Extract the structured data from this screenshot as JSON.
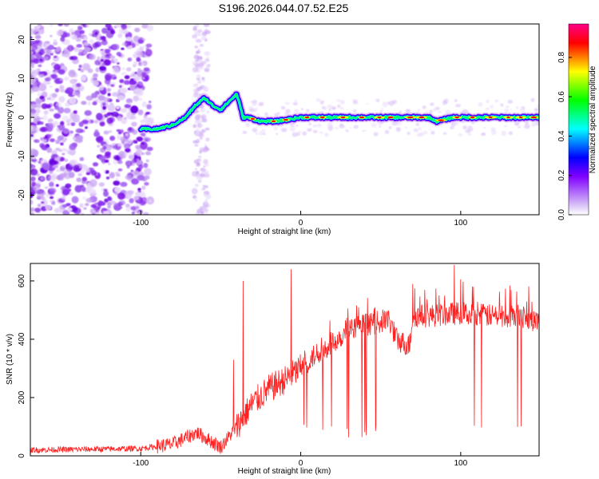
{
  "title": "S196.2026.044.07.52.E25",
  "chart_data": [
    {
      "type": "heatmap",
      "name": "spectrogram",
      "xlabel": "Height of straight line (km)",
      "ylabel": "Frequency (Hz)",
      "xlim": [
        -169,
        149
      ],
      "ylim": [
        -25,
        24
      ],
      "xticks": [
        -100,
        0,
        100
      ],
      "yticks": [
        -20,
        -10,
        0,
        10,
        20
      ],
      "colorbar": {
        "label": "Normalized spectral amplitude",
        "range": [
          0,
          0.97
        ],
        "ticks": [
          0.0,
          0.2,
          0.4,
          0.6,
          0.8
        ],
        "colormap": [
          "#ffffff",
          "#e0c8f8",
          "#8000ff",
          "#0000ff",
          "#00ffff",
          "#00ff00",
          "#ffff00",
          "#ff0000",
          "#ff00a0"
        ]
      },
      "signal_track": {
        "height_km": [
          -100,
          -90,
          -80,
          -72,
          -66,
          -60,
          -55,
          -50,
          -45,
          -40,
          -36,
          -33,
          -25,
          -15,
          0,
          20,
          40,
          60,
          80,
          85,
          95,
          110,
          130,
          149
        ],
        "frequency_hz": [
          -3,
          -3,
          -2,
          0,
          3,
          5,
          3,
          2,
          4,
          6,
          0,
          0,
          -1,
          -1,
          0,
          0,
          0,
          0,
          0,
          -1,
          0,
          0,
          0,
          0
        ]
      }
    },
    {
      "type": "line",
      "name": "snr",
      "xlabel": "Height of straight line (km)",
      "ylabel": "SNR (10 * v/v)",
      "xlim": [
        -169,
        149
      ],
      "ylim": [
        0,
        660
      ],
      "xticks": [
        -100,
        0,
        100
      ],
      "yticks": [
        0,
        200,
        400,
        600
      ],
      "color": "#ff2020",
      "baseline": {
        "x": [
          -169,
          -100,
          -80,
          -65,
          -50,
          -40,
          -30,
          -20,
          -10,
          0,
          10,
          20,
          30,
          40,
          50,
          55,
          60,
          65,
          68,
          70,
          80,
          90,
          100,
          110,
          120,
          130,
          140,
          149
        ],
        "y": [
          20,
          25,
          40,
          80,
          30,
          100,
          180,
          230,
          260,
          300,
          350,
          390,
          430,
          450,
          460,
          470,
          400,
          385,
          380,
          480,
          480,
          485,
          490,
          485,
          480,
          480,
          470,
          460
        ]
      },
      "spikes": [
        {
          "x": -36,
          "y": 600
        },
        {
          "x": -6,
          "y": 640
        },
        {
          "x": 96,
          "y": 655
        },
        {
          "x": -42,
          "y": 330
        },
        {
          "x": 70,
          "y": 590
        },
        {
          "x": 108,
          "y": 580
        }
      ]
    }
  ]
}
